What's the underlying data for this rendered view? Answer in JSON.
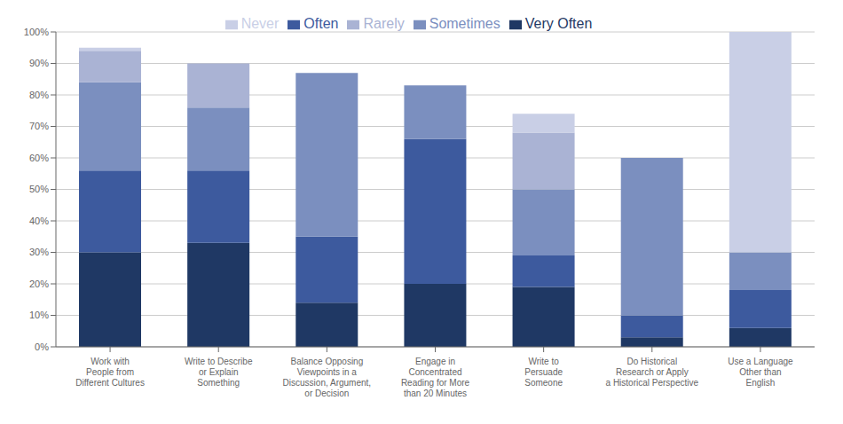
{
  "chart_data": {
    "type": "bar",
    "stacked": true,
    "categories": [
      "Work with\nPeople from\nDifferent Cultures",
      "Write to Describe\nor Explain\nSomething",
      "Balance Opposing\nViewpoints in a\nDiscussion, Argument,\nor Decision",
      "Engage in\nConcentrated\nReading for More\nthan 20 Minutes",
      "Write to\nPersuade\nSomeone",
      "Do Historical\nResearch or Apply\na Historical Perspective",
      "Use a Language\nOther than\nEnglish"
    ],
    "series": [
      {
        "name": "Very Often",
        "color": "#1f3864",
        "values": [
          30,
          33,
          14,
          20,
          19,
          3,
          6
        ]
      },
      {
        "name": "Often",
        "color": "#3d5a9e",
        "values": [
          26,
          23,
          21,
          46,
          10,
          7,
          12
        ]
      },
      {
        "name": "Sometimes",
        "color": "#7b8fbf",
        "values": [
          28,
          20,
          52,
          17,
          21,
          50,
          12
        ]
      },
      {
        "name": "Rarely",
        "color": "#aab3d4",
        "values": [
          10,
          14,
          0,
          0,
          18,
          0,
          0
        ]
      },
      {
        "name": "Never",
        "color": "#c9cfe6",
        "values": [
          1,
          0,
          0,
          0,
          6,
          0,
          70
        ]
      }
    ],
    "ylim": [
      0,
      100
    ],
    "yticks": [
      {
        "value": 0,
        "label": "0%"
      },
      {
        "value": 10,
        "label": "10%"
      },
      {
        "value": 20,
        "label": "20%"
      },
      {
        "value": 30,
        "label": "30%"
      },
      {
        "value": 40,
        "label": "40%"
      },
      {
        "value": 50,
        "label": "50%"
      },
      {
        "value": 60,
        "label": "60%"
      },
      {
        "value": 70,
        "label": "70%"
      },
      {
        "value": 80,
        "label": "80%"
      },
      {
        "value": 90,
        "label": "90%"
      },
      {
        "value": 100,
        "label": "100%"
      }
    ],
    "grid": true,
    "legend": "top"
  }
}
